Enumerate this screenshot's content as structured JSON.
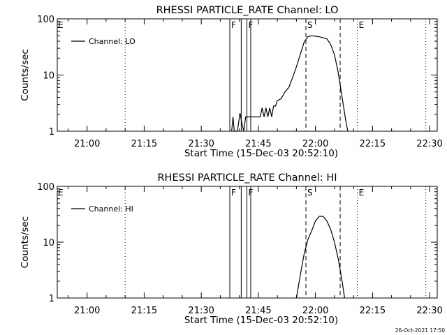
{
  "footer_timestamp": "26-Oct-2021 17:50",
  "chart_data": [
    {
      "type": "line",
      "title": "RHESSI PARTICLE_RATE Channel: LO",
      "xlabel": "Start Time (15-Dec-03 20:52:10)",
      "ylabel": "Counts/sec",
      "yscale": "log",
      "ylim": [
        1,
        100
      ],
      "xlim": [
        "20:52:10",
        "22:32:00"
      ],
      "x_ticks": [
        "21:00",
        "21:15",
        "21:30",
        "21:45",
        "22:00",
        "22:15",
        "22:30"
      ],
      "y_ticks": [
        "1",
        "10",
        "100"
      ],
      "legend": {
        "position": "top-left",
        "entries": [
          "Channel: LO"
        ]
      },
      "series": [
        {
          "name": "Channel: LO",
          "points": [
            [
              "21:38:00",
              1
            ],
            [
              "21:38:20",
              1.8
            ],
            [
              "21:38:40",
              1
            ],
            [
              "21:39:30",
              1
            ],
            [
              "21:40:10",
              2.1
            ],
            [
              "21:40:40",
              1.4
            ],
            [
              "21:41:10",
              1
            ],
            [
              "21:41:40",
              1.8
            ],
            [
              "21:45:30",
              1.8
            ],
            [
              "21:46:00",
              2.6
            ],
            [
              "21:46:30",
              1.8
            ],
            [
              "21:47:00",
              2.6
            ],
            [
              "21:47:30",
              1.8
            ],
            [
              "21:48:00",
              2.6
            ],
            [
              "21:48:30",
              1.8
            ],
            [
              "21:49:00",
              2.8
            ],
            [
              "21:49:30",
              2.8
            ],
            [
              "21:50:00",
              3.5
            ],
            [
              "21:51:00",
              3.8
            ],
            [
              "21:52:00",
              5
            ],
            [
              "21:53:00",
              6
            ],
            [
              "21:54:00",
              9
            ],
            [
              "21:55:00",
              14
            ],
            [
              "21:56:00",
              23
            ],
            [
              "21:57:00",
              38
            ],
            [
              "21:58:00",
              48
            ],
            [
              "21:59:00",
              50
            ],
            [
              "22:00:00",
              49
            ],
            [
              "22:01:00",
              48
            ],
            [
              "22:02:00",
              46
            ],
            [
              "22:03:00",
              44
            ],
            [
              "22:04:00",
              35
            ],
            [
              "22:05:00",
              23
            ],
            [
              "22:06:00",
              11
            ],
            [
              "22:07:00",
              4
            ],
            [
              "22:08:00",
              1.5
            ],
            [
              "22:08:30",
              1
            ]
          ]
        }
      ],
      "annotations": [
        {
          "label": "E",
          "time": "20:52:10",
          "style": "dotted"
        },
        {
          "label": "",
          "time": "21:10:00",
          "style": "dotted"
        },
        {
          "label": "F",
          "time": "21:37:30",
          "style": "solid"
        },
        {
          "label": "",
          "time": "21:40:30",
          "style": "solid"
        },
        {
          "label": "F",
          "time": "21:42:00",
          "style": "solid"
        },
        {
          "label": "",
          "time": "21:43:00",
          "style": "solid"
        },
        {
          "label": "S",
          "time": "21:57:30",
          "style": "dashed"
        },
        {
          "label": "",
          "time": "22:06:30",
          "style": "dashed"
        },
        {
          "label": "E",
          "time": "22:11:00",
          "style": "dotted"
        },
        {
          "label": "",
          "time": "22:29:00",
          "style": "dotted"
        }
      ]
    },
    {
      "type": "line",
      "title": "RHESSI PARTICLE_RATE Channel: HI",
      "xlabel": "Start Time (15-Dec-03 20:52:10)",
      "ylabel": "Counts/sec",
      "yscale": "log",
      "ylim": [
        1,
        100
      ],
      "xlim": [
        "20:52:10",
        "22:32:00"
      ],
      "x_ticks": [
        "21:00",
        "21:15",
        "21:30",
        "21:45",
        "22:00",
        "22:15",
        "22:30"
      ],
      "y_ticks": [
        "1",
        "10",
        "100"
      ],
      "legend": {
        "position": "top-left",
        "entries": [
          "Channel: HI"
        ]
      },
      "series": [
        {
          "name": "Channel: HI",
          "points": [
            [
              "21:55:00",
              1
            ],
            [
              "21:56:00",
              2.5
            ],
            [
              "21:57:00",
              6
            ],
            [
              "21:58:00",
              11
            ],
            [
              "21:59:00",
              16
            ],
            [
              "22:00:00",
              24
            ],
            [
              "22:01:00",
              29
            ],
            [
              "22:02:00",
              29
            ],
            [
              "22:03:00",
              24
            ],
            [
              "22:04:00",
              17
            ],
            [
              "22:05:00",
              10
            ],
            [
              "22:06:00",
              5
            ],
            [
              "22:07:00",
              2
            ],
            [
              "22:07:40",
              1
            ]
          ]
        }
      ],
      "annotations": [
        {
          "label": "E",
          "time": "20:52:10",
          "style": "dotted"
        },
        {
          "label": "",
          "time": "21:10:00",
          "style": "dotted"
        },
        {
          "label": "F",
          "time": "21:37:30",
          "style": "solid"
        },
        {
          "label": "",
          "time": "21:40:30",
          "style": "solid"
        },
        {
          "label": "F",
          "time": "21:42:00",
          "style": "solid"
        },
        {
          "label": "",
          "time": "21:43:00",
          "style": "solid"
        },
        {
          "label": "S",
          "time": "21:57:30",
          "style": "dashed"
        },
        {
          "label": "",
          "time": "22:06:30",
          "style": "dashed"
        },
        {
          "label": "E",
          "time": "22:11:00",
          "style": "dotted"
        },
        {
          "label": "",
          "time": "22:29:00",
          "style": "dotted"
        }
      ]
    }
  ]
}
